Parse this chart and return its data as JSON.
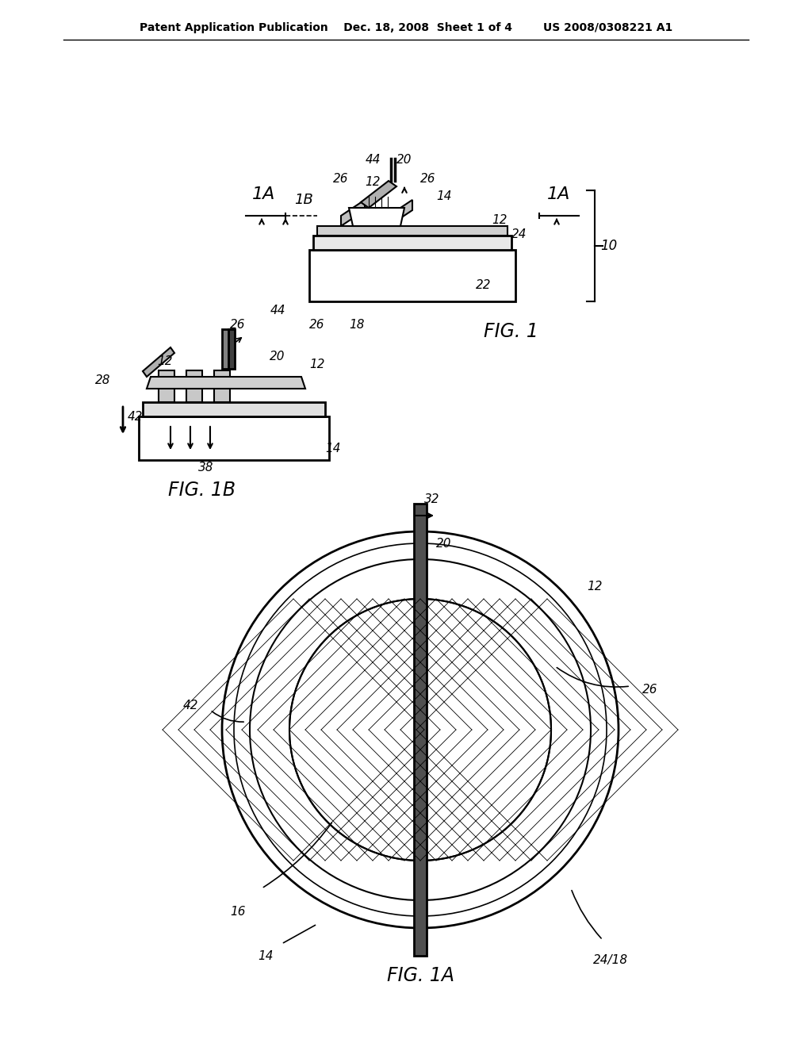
{
  "bg_color": "#ffffff",
  "line_color": "#000000",
  "header_text": "Patent Application Publication    Dec. 18, 2008  Sheet 1 of 4        US 2008/0308221 A1",
  "fig1_label": "FIG. 1",
  "fig1a_label": "FIG. 1A",
  "fig1b_label": "FIG. 1B"
}
